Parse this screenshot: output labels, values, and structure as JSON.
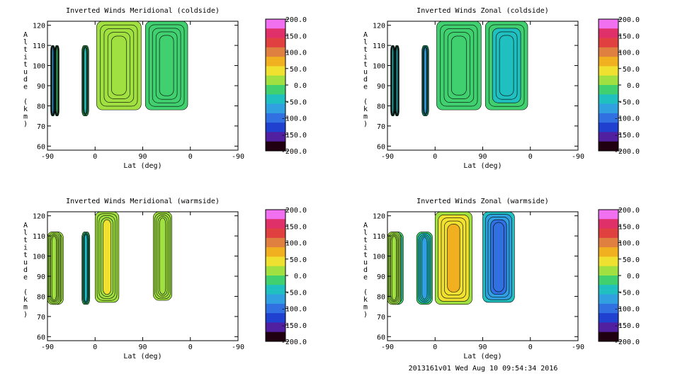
{
  "footer": "2013161v01 Wed Aug 10 09:54:34 2016",
  "colorbar": {
    "labels": [
      "200.0",
      "150.0",
      "100.0",
      "50.0",
      "0.0",
      "-50.0",
      "-100.0",
      "-150.0",
      "-200.0"
    ],
    "colors": [
      "#f070f0",
      "#e0306a",
      "#e04040",
      "#e08040",
      "#f0b020",
      "#f0e030",
      "#a0e040",
      "#40d070",
      "#20c0c0",
      "#30a0e0",
      "#3070e0",
      "#2040d0",
      "#5020a0",
      "#200010"
    ]
  },
  "chart_data": [
    {
      "type": "heatmap",
      "title": "Inverted Winds Meridional (coldside)",
      "xlabel": "Lat (deg)",
      "ylabel": "Altitude (km)",
      "xticks": [
        "-90",
        "0",
        "90",
        "0",
        "-90"
      ],
      "yticks": [
        "60",
        "70",
        "80",
        "90",
        "100",
        "110",
        "120"
      ],
      "ylim": [
        58,
        122
      ],
      "zlim": [
        -200,
        200
      ],
      "series": [
        {
          "x": [
            -76,
            -69
          ],
          "y": [
            75,
            110
          ],
          "value": -20
        },
        {
          "x": [
            -25,
            -12
          ],
          "y": [
            75,
            110
          ],
          "value": -30
        },
        {
          "x": [
            3,
            87
          ],
          "y": [
            78,
            122
          ],
          "value": 10
        },
        {
          "x": [
            95,
            175
          ],
          "y": [
            78,
            122
          ],
          "value": 0
        },
        {
          "x": [
            -84,
            -78
          ],
          "y": [
            75,
            110
          ],
          "value": -60
        }
      ]
    },
    {
      "type": "heatmap",
      "title": "Inverted Winds Zonal (coldside)",
      "xlabel": "Lat (deg)",
      "ylabel": "Altitude (km)",
      "xticks": [
        "-90",
        "0",
        "90",
        "0",
        "-90"
      ],
      "yticks": [
        "60",
        "70",
        "80",
        "90",
        "100",
        "110",
        "120"
      ],
      "ylim": [
        58,
        122
      ],
      "zlim": [
        -200,
        200
      ],
      "series": [
        {
          "x": [
            -76,
            -69
          ],
          "y": [
            75,
            110
          ],
          "value": -40
        },
        {
          "x": [
            -25,
            -12
          ],
          "y": [
            75,
            110
          ],
          "value": -60
        },
        {
          "x": [
            3,
            87
          ],
          "y": [
            78,
            122
          ],
          "value": -20
        },
        {
          "x": [
            95,
            175
          ],
          "y": [
            78,
            122
          ],
          "value": -40
        },
        {
          "x": [
            -84,
            -78
          ],
          "y": [
            75,
            110
          ],
          "value": -50
        }
      ]
    },
    {
      "type": "heatmap",
      "title": "Inverted Winds Meridional (warmside)",
      "xlabel": "Lat (deg)",
      "ylabel": "Altitude (km)",
      "xticks": [
        "-90",
        "0",
        "90",
        "0",
        "-90"
      ],
      "yticks": [
        "60",
        "70",
        "80",
        "90",
        "100",
        "110",
        "120"
      ],
      "ylim": [
        58,
        122
      ],
      "zlim": [
        -200,
        200
      ],
      "series": [
        {
          "x": [
            -90,
            -60
          ],
          "y": [
            76,
            112
          ],
          "value": 20
        },
        {
          "x": [
            -25,
            -10
          ],
          "y": [
            76,
            112
          ],
          "value": -40
        },
        {
          "x": [
            0,
            45
          ],
          "y": [
            77,
            122
          ],
          "value": 30
        },
        {
          "x": [
            110,
            145
          ],
          "y": [
            78,
            122
          ],
          "value": 20
        },
        {
          "x": [
            -65,
            -90
          ],
          "y": [
            76,
            112
          ],
          "value": 10
        }
      ]
    },
    {
      "type": "heatmap",
      "title": "Inverted Winds Zonal (warmside)",
      "xlabel": "Lat (deg)",
      "ylabel": "Altitude (km)",
      "xticks": [
        "-90",
        "0",
        "90",
        "0",
        "-90"
      ],
      "yticks": [
        "60",
        "70",
        "80",
        "90",
        "100",
        "110",
        "120"
      ],
      "ylim": [
        58,
        122
      ],
      "zlim": [
        -200,
        200
      ],
      "series": [
        {
          "x": [
            -90,
            -60
          ],
          "y": [
            76,
            112
          ],
          "value": -50
        },
        {
          "x": [
            -35,
            -5
          ],
          "y": [
            76,
            112
          ],
          "value": -60
        },
        {
          "x": [
            0,
            70
          ],
          "y": [
            76,
            122
          ],
          "value": 60
        },
        {
          "x": [
            90,
            150
          ],
          "y": [
            77,
            122
          ],
          "value": -110
        },
        {
          "x": [
            -65,
            -90
          ],
          "y": [
            76,
            112
          ],
          "value": 20
        }
      ]
    }
  ]
}
